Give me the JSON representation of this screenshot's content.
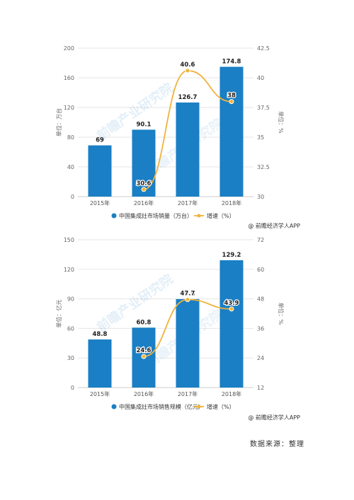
{
  "chart_data": [
    {
      "type": "bar",
      "categories": [
        "2015年",
        "2016年",
        "2017年",
        "2018年"
      ],
      "series": [
        {
          "name": "中国集成灶市场销量（万台）",
          "type": "bar",
          "axis": "left",
          "values": [
            69,
            90.1,
            126.7,
            174.8
          ],
          "color": "#1a7fc4"
        },
        {
          "name": "增速（%）",
          "type": "line",
          "axis": "right",
          "values": [
            null,
            30.6,
            40.6,
            38
          ],
          "color": "#f0b33c"
        }
      ],
      "ylabel": "单位：万台",
      "y2label": "单位：%",
      "ylim": [
        0,
        200
      ],
      "yticks": [
        0,
        40,
        80,
        120,
        160,
        200
      ],
      "y2lim": [
        30,
        42.5
      ],
      "y2ticks": [
        "30",
        "32.5",
        "35",
        "37.5",
        "40",
        "42.5"
      ],
      "watermark": "前瞻产业研究院",
      "credit": "@ 前瞻经济学人APP",
      "legend": "bottom"
    },
    {
      "type": "bar",
      "categories": [
        "2015年",
        "2016年",
        "2017年",
        "2018年"
      ],
      "series": [
        {
          "name": "中国集成灶市场销售规模（亿元）",
          "type": "bar",
          "axis": "left",
          "values": [
            48.8,
            60.8,
            89.8,
            129.2
          ],
          "color": "#1a7fc4"
        },
        {
          "name": "增速（%）",
          "type": "line",
          "axis": "right",
          "values": [
            null,
            24.6,
            47.7,
            43.9
          ],
          "color": "#f0b33c"
        }
      ],
      "ylabel": "单位：亿元",
      "y2label": "单位：%",
      "ylim": [
        0,
        150
      ],
      "yticks": [
        0,
        30,
        60,
        90,
        120,
        150
      ],
      "y2lim": [
        12,
        72
      ],
      "y2ticks": [
        "12",
        "24",
        "36",
        "48",
        "60",
        "72"
      ],
      "watermark": "前瞻产业研究院",
      "credit": "@ 前瞻经济学人APP",
      "legend": "bottom"
    }
  ],
  "source_text": "数据来源：整理"
}
